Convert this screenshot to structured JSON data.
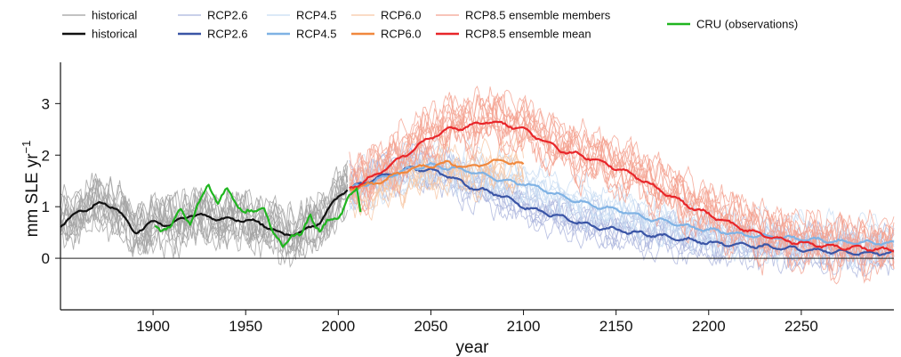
{
  "chart_data": {
    "type": "line",
    "title": "",
    "xlabel": "year",
    "ylabel": "mm SLE yr",
    "ylabel_sup": "−1",
    "xlim": [
      1850,
      2300
    ],
    "ylim": [
      -1,
      3.8
    ],
    "xticks": [
      1900,
      1950,
      2000,
      2050,
      2100,
      2150,
      2200,
      2250
    ],
    "yticks": [
      0,
      1,
      2,
      3
    ],
    "zero_line": true,
    "grid": false,
    "legend_position": "top",
    "legend": [
      {
        "label": "historical",
        "color": "#9e9e9e",
        "style": "thin"
      },
      {
        "label": "historical",
        "color": "#111111",
        "style": "thick"
      },
      {
        "label": "RCP2.6",
        "color": "#a9b3dc",
        "style": "thin"
      },
      {
        "label": "RCP2.6",
        "color": "#3a55a6",
        "style": "thick"
      },
      {
        "label": "RCP4.5",
        "color": "#c8dcf2",
        "style": "thin"
      },
      {
        "label": "RCP4.5",
        "color": "#7fb2e4",
        "style": "thick"
      },
      {
        "label": "RCP6.0",
        "color": "#f7c6a3",
        "style": "thin"
      },
      {
        "label": "RCP6.0",
        "color": "#f0883e",
        "style": "thick"
      },
      {
        "label": "RCP8.5 ensemble members",
        "color": "#f4a08f",
        "style": "thin"
      },
      {
        "label": "RCP8.5 ensemble mean",
        "color": "#e8262a",
        "style": "thick"
      },
      {
        "label": "CRU (observations)",
        "color": "#1fb51f",
        "style": "thick"
      }
    ],
    "series": [
      {
        "group": "historical",
        "kind": "mean",
        "color": "#111111",
        "x": [
          1850,
          1860,
          1870,
          1880,
          1890,
          1900,
          1910,
          1920,
          1930,
          1940,
          1950,
          1960,
          1970,
          1980,
          1990,
          2000,
          2005
        ],
        "y": [
          0.65,
          0.9,
          1.05,
          1.0,
          0.5,
          0.7,
          0.65,
          0.85,
          0.8,
          0.75,
          0.75,
          0.65,
          0.45,
          0.5,
          0.7,
          1.2,
          1.35
        ]
      },
      {
        "group": "CRU (observations)",
        "kind": "obs",
        "color": "#1fb51f",
        "x": [
          1901,
          1910,
          1915,
          1920,
          1925,
          1930,
          1935,
          1940,
          1945,
          1950,
          1955,
          1960,
          1965,
          1970,
          1975,
          1980,
          1985,
          1990,
          1995,
          2000,
          2005,
          2010,
          2012
        ],
        "y": [
          0.6,
          0.6,
          0.95,
          0.7,
          1.05,
          1.45,
          1.1,
          1.3,
          1.1,
          0.9,
          0.85,
          1.05,
          0.45,
          0.2,
          0.5,
          0.4,
          0.85,
          0.55,
          0.7,
          0.8,
          1.15,
          1.3,
          0.9
        ]
      },
      {
        "group": "RCP2.6",
        "kind": "mean",
        "color": "#3a55a6",
        "x": [
          2006,
          2020,
          2040,
          2050,
          2060,
          2070,
          2080,
          2090,
          2100,
          2110,
          2120,
          2130,
          2140,
          2150,
          2160,
          2170,
          2180,
          2190,
          2200,
          2220,
          2240,
          2260,
          2280,
          2300
        ],
        "y": [
          1.35,
          1.55,
          1.75,
          1.7,
          1.6,
          1.4,
          1.3,
          1.2,
          1.0,
          0.9,
          0.8,
          0.7,
          0.6,
          0.55,
          0.5,
          0.45,
          0.4,
          0.35,
          0.3,
          0.25,
          0.2,
          0.15,
          0.1,
          0.1
        ]
      },
      {
        "group": "RCP4.5",
        "kind": "mean",
        "color": "#7fb2e4",
        "x": [
          2006,
          2020,
          2040,
          2050,
          2060,
          2070,
          2080,
          2090,
          2100,
          2110,
          2120,
          2130,
          2140,
          2150,
          2160,
          2170,
          2180,
          2190,
          2200,
          2220,
          2240,
          2260,
          2280,
          2300
        ],
        "y": [
          1.35,
          1.5,
          1.75,
          1.8,
          1.75,
          1.7,
          1.6,
          1.5,
          1.45,
          1.35,
          1.2,
          1.1,
          1.0,
          0.95,
          0.85,
          0.75,
          0.7,
          0.6,
          0.55,
          0.45,
          0.4,
          0.35,
          0.3,
          0.3
        ]
      },
      {
        "group": "RCP6.0",
        "kind": "mean",
        "color": "#f0883e",
        "x": [
          2006,
          2020,
          2030,
          2040,
          2050,
          2060,
          2070,
          2080,
          2090,
          2100
        ],
        "y": [
          1.35,
          1.45,
          1.6,
          1.75,
          1.8,
          1.85,
          1.75,
          1.85,
          1.9,
          1.8
        ]
      },
      {
        "group": "RCP8.5 ensemble mean",
        "kind": "mean",
        "color": "#e8262a",
        "x": [
          2006,
          2020,
          2030,
          2040,
          2050,
          2060,
          2070,
          2080,
          2090,
          2100,
          2110,
          2120,
          2130,
          2140,
          2150,
          2160,
          2170,
          2180,
          2190,
          2200,
          2210,
          2220,
          2230,
          2240,
          2250,
          2260,
          2270,
          2280,
          2290,
          2300
        ],
        "y": [
          1.35,
          1.6,
          1.85,
          2.1,
          2.35,
          2.5,
          2.55,
          2.65,
          2.6,
          2.5,
          2.3,
          2.1,
          2.0,
          1.9,
          1.75,
          1.6,
          1.4,
          1.2,
          1.0,
          0.85,
          0.7,
          0.55,
          0.45,
          0.35,
          0.3,
          0.25,
          0.22,
          0.2,
          0.18,
          0.15
        ]
      }
    ]
  }
}
